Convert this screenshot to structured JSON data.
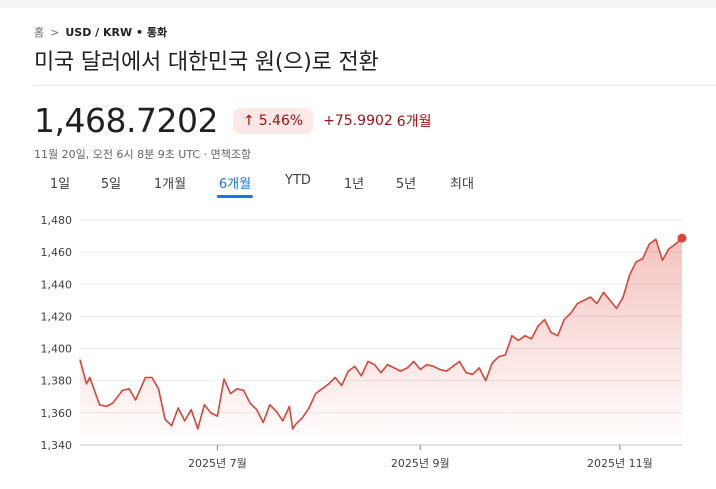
{
  "breadcrumb": {
    "home": "홈",
    "separator": ">",
    "current": "USD / KRW • 통화"
  },
  "title": "미국 달러에서 대한민국 원(으)로 전환",
  "quote": {
    "price": "1,468.7202",
    "arrow_icon": "arrow-up-icon",
    "change_pct": "5.46%",
    "change_abs": "+75.9902",
    "change_period": "6개월",
    "timestamp": "11월 20일, 오전 6시 8분 9초 UTC · 면책조항"
  },
  "tabs": [
    {
      "label": "1일",
      "active": false
    },
    {
      "label": "5일",
      "active": false
    },
    {
      "label": "1개월",
      "active": false
    },
    {
      "label": "6개월",
      "active": true
    },
    {
      "label": "YTD",
      "active": false
    },
    {
      "label": "1년",
      "active": false
    },
    {
      "label": "5년",
      "active": false
    },
    {
      "label": "최대",
      "active": false
    }
  ],
  "colors": {
    "line": "#db4437",
    "badge_bg": "#fce8e6",
    "negative_text": "#a50e0e",
    "active_tab": "#1a73e8"
  },
  "chart_data": {
    "type": "area",
    "ylim": [
      1340,
      1480
    ],
    "yticks": [
      "1,480",
      "1,460",
      "1,440",
      "1,420",
      "1,400",
      "1,380",
      "1,360",
      "1,340"
    ],
    "ytick_values": [
      1480,
      1460,
      1440,
      1420,
      1400,
      1380,
      1360,
      1340
    ],
    "xticks": [
      {
        "label": "2025년 7월",
        "date": "2025-07-01"
      },
      {
        "label": "2025년 9월",
        "date": "2025-09-01"
      },
      {
        "label": "2025년 11월",
        "date": "2025-11-01"
      }
    ],
    "x_range": [
      "2025-05-20",
      "2025-11-20"
    ],
    "grid": "horizontal",
    "series": [
      {
        "values": [
          [
            "2025-05-20",
            1393
          ],
          [
            "2025-05-22",
            1378
          ],
          [
            "2025-05-23",
            1382
          ],
          [
            "2025-05-26",
            1365
          ],
          [
            "2025-05-28",
            1364
          ],
          [
            "2025-05-30",
            1366
          ],
          [
            "2025-06-02",
            1374
          ],
          [
            "2025-06-04",
            1375
          ],
          [
            "2025-06-06",
            1368
          ],
          [
            "2025-06-09",
            1382
          ],
          [
            "2025-06-11",
            1382
          ],
          [
            "2025-06-13",
            1375
          ],
          [
            "2025-06-15",
            1356
          ],
          [
            "2025-06-17",
            1352
          ],
          [
            "2025-06-19",
            1363
          ],
          [
            "2025-06-21",
            1355
          ],
          [
            "2025-06-23",
            1362
          ],
          [
            "2025-06-25",
            1350
          ],
          [
            "2025-06-27",
            1365
          ],
          [
            "2025-06-29",
            1360
          ],
          [
            "2025-07-01",
            1358
          ],
          [
            "2025-07-03",
            1381
          ],
          [
            "2025-07-05",
            1372
          ],
          [
            "2025-07-07",
            1375
          ],
          [
            "2025-07-09",
            1374
          ],
          [
            "2025-07-11",
            1366
          ],
          [
            "2025-07-13",
            1362
          ],
          [
            "2025-07-15",
            1354
          ],
          [
            "2025-07-17",
            1365
          ],
          [
            "2025-07-19",
            1361
          ],
          [
            "2025-07-21",
            1355
          ],
          [
            "2025-07-23",
            1364
          ],
          [
            "2025-07-24",
            1350
          ],
          [
            "2025-07-25",
            1353
          ],
          [
            "2025-07-27",
            1357
          ],
          [
            "2025-07-29",
            1363
          ],
          [
            "2025-07-31",
            1372
          ],
          [
            "2025-08-02",
            1375
          ],
          [
            "2025-08-04",
            1378
          ],
          [
            "2025-08-06",
            1382
          ],
          [
            "2025-08-08",
            1377
          ],
          [
            "2025-08-10",
            1386
          ],
          [
            "2025-08-12",
            1389
          ],
          [
            "2025-08-14",
            1383
          ],
          [
            "2025-08-16",
            1392
          ],
          [
            "2025-08-18",
            1390
          ],
          [
            "2025-08-20",
            1385
          ],
          [
            "2025-08-22",
            1390
          ],
          [
            "2025-08-24",
            1388
          ],
          [
            "2025-08-26",
            1386
          ],
          [
            "2025-08-28",
            1388
          ],
          [
            "2025-08-30",
            1392
          ],
          [
            "2025-09-01",
            1387
          ],
          [
            "2025-09-03",
            1390
          ],
          [
            "2025-09-05",
            1389
          ],
          [
            "2025-09-07",
            1387
          ],
          [
            "2025-09-09",
            1386
          ],
          [
            "2025-09-11",
            1389
          ],
          [
            "2025-09-13",
            1392
          ],
          [
            "2025-09-15",
            1385
          ],
          [
            "2025-09-17",
            1384
          ],
          [
            "2025-09-19",
            1388
          ],
          [
            "2025-09-21",
            1380
          ],
          [
            "2025-09-23",
            1391
          ],
          [
            "2025-09-25",
            1395
          ],
          [
            "2025-09-27",
            1396
          ],
          [
            "2025-09-29",
            1408
          ],
          [
            "2025-10-01",
            1405
          ],
          [
            "2025-10-03",
            1408
          ],
          [
            "2025-10-05",
            1406
          ],
          [
            "2025-10-07",
            1414
          ],
          [
            "2025-10-09",
            1418
          ],
          [
            "2025-10-11",
            1410
          ],
          [
            "2025-10-13",
            1408
          ],
          [
            "2025-10-15",
            1418
          ],
          [
            "2025-10-17",
            1422
          ],
          [
            "2025-10-19",
            1428
          ],
          [
            "2025-10-21",
            1430
          ],
          [
            "2025-10-23",
            1432
          ],
          [
            "2025-10-25",
            1428
          ],
          [
            "2025-10-27",
            1435
          ],
          [
            "2025-10-29",
            1430
          ],
          [
            "2025-10-31",
            1425
          ],
          [
            "2025-11-02",
            1432
          ],
          [
            "2025-11-04",
            1446
          ],
          [
            "2025-11-06",
            1454
          ],
          [
            "2025-11-08",
            1456
          ],
          [
            "2025-11-10",
            1465
          ],
          [
            "2025-11-12",
            1468
          ],
          [
            "2025-11-14",
            1455
          ],
          [
            "2025-11-16",
            1462
          ],
          [
            "2025-11-18",
            1465
          ],
          [
            "2025-11-20",
            1468.7202
          ]
        ]
      }
    ]
  }
}
